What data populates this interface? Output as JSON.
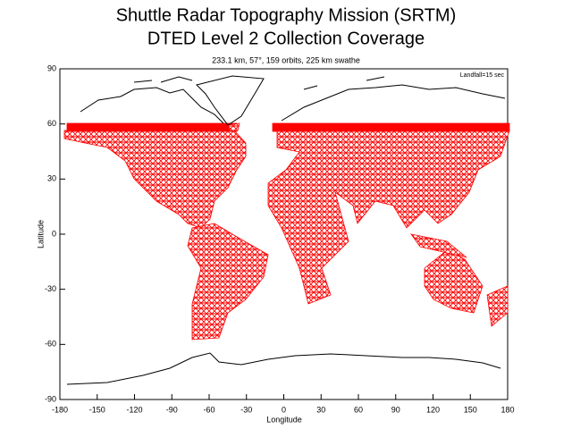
{
  "chart_data": {
    "type": "map",
    "title": "Shuttle Radar Topography Mission (SRTM)",
    "subtitle": "DTED Level 2 Collection Coverage",
    "annotation": "233.1 km, 57°, 159 orbits, 225 km swathe",
    "legend_note": "Landfall=15 sec",
    "x_label": "Longitude",
    "y_label": "Latitude",
    "xlim": [
      -180,
      180
    ],
    "ylim": [
      -90,
      90
    ],
    "xticks": [
      -180,
      -150,
      -120,
      -90,
      -60,
      -30,
      0,
      30,
      60,
      90,
      120,
      150,
      180
    ],
    "yticks": [
      -90,
      -60,
      -30,
      0,
      30,
      60,
      90
    ],
    "color": "#ff0000"
  }
}
